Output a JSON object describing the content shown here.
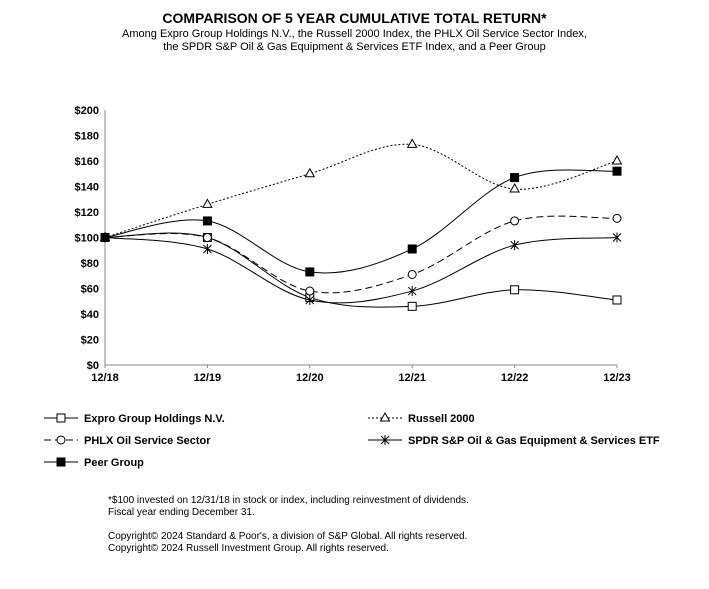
{
  "chart_data": {
    "type": "line",
    "title": "COMPARISON OF 5 YEAR CUMULATIVE TOTAL RETURN*",
    "subtitle": [
      "Among Expro Group Holdings N.V., the Russell 2000 Index, the PHLX Oil Service Sector Index,",
      "the SPDR S&P Oil & Gas Equipment & Services ETF Index, and a Peer Group"
    ],
    "categories": [
      "12/18",
      "12/19",
      "12/20",
      "12/21",
      "12/22",
      "12/23"
    ],
    "ylim": [
      0,
      200
    ],
    "yticks": [
      "$0",
      "$20",
      "$40",
      "$60",
      "$80",
      "$100",
      "$120",
      "$140",
      "$160",
      "$180",
      "$200"
    ],
    "grid": false,
    "legend_placement": "bottom",
    "series": [
      {
        "name": "Expro Group Holdings N.V.",
        "values": [
          100,
          100,
          53,
          46,
          59,
          51
        ],
        "marker": "open-square",
        "dash": "solid"
      },
      {
        "name": "Russell 2000",
        "values": [
          100,
          126,
          150,
          173,
          138,
          160
        ],
        "marker": "open-triangle",
        "dash": "dotted"
      },
      {
        "name": "PHLX Oil Service Sector",
        "values": [
          100,
          100,
          58,
          71,
          113,
          115
        ],
        "marker": "open-circle",
        "dash": "dashed"
      },
      {
        "name": "SPDR S&P Oil & Gas Equipment & Services ETF",
        "values": [
          100,
          91,
          51,
          58,
          94,
          100
        ],
        "marker": "asterisk",
        "dash": "solid"
      },
      {
        "name": "Peer Group",
        "values": [
          100,
          113,
          73,
          91,
          147,
          152
        ],
        "marker": "filled-square",
        "dash": "solid"
      }
    ]
  },
  "notes": {
    "n1": "*$100 invested on 12/31/18 in stock or index, including reinvestment of dividends.",
    "n2": "Fiscal year ending December 31.",
    "n3": "Copyright© 2024 Standard & Poor's, a division of S&P Global.  All rights reserved.",
    "n4": "Copyright© 2024 Russell Investment Group.  All rights reserved."
  }
}
